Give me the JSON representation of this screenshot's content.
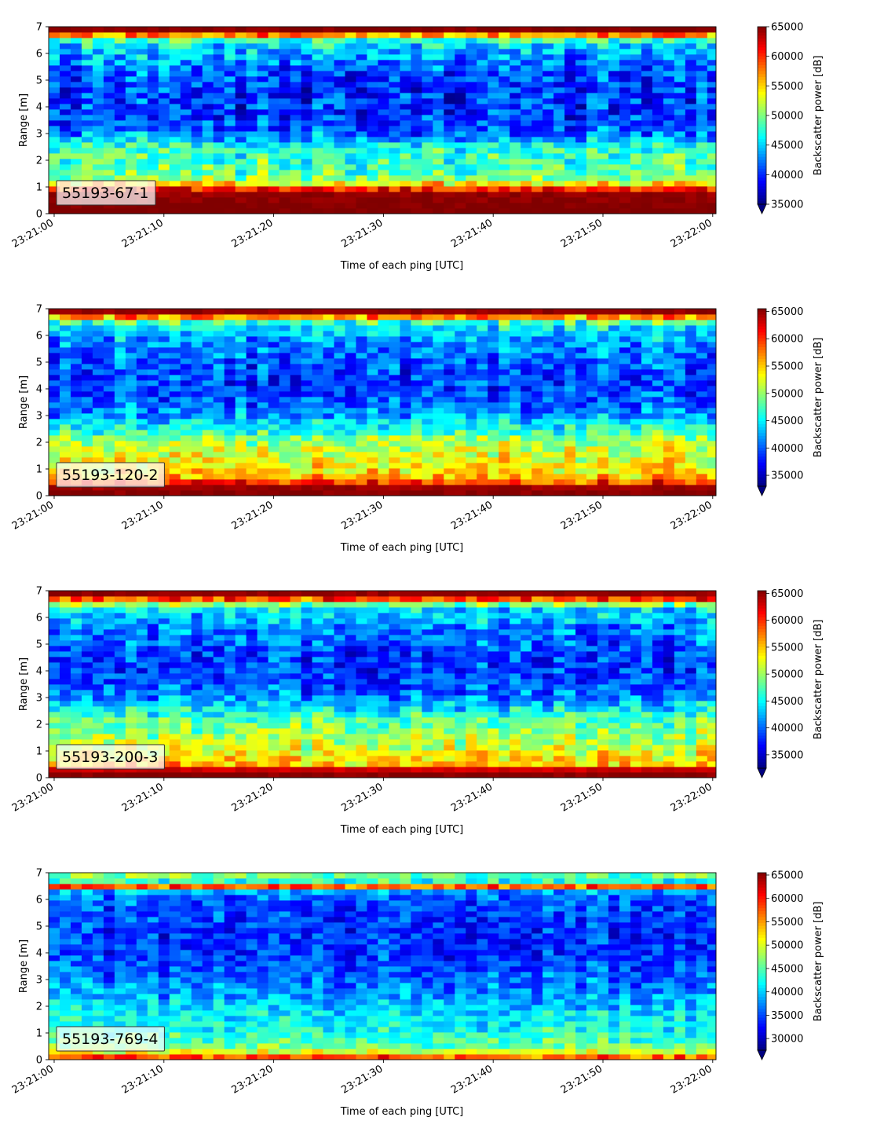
{
  "chart_data": [
    {
      "type": "heatmap",
      "label": "55193-67-1",
      "xlabel": "Time of each ping [UTC]",
      "ylabel": "Range [m]",
      "x_range": [
        "23:20:59.5",
        "23:22:00.3"
      ],
      "xticks": [
        "23:21:00",
        "23:21:10",
        "23:21:20",
        "23:21:30",
        "23:21:40",
        "23:21:50",
        "23:22:00"
      ],
      "ylim": [
        0,
        7
      ],
      "yticks": [
        0,
        1,
        2,
        3,
        4,
        5,
        6,
        7
      ],
      "colorbar": {
        "label": "Backscatter power [dB]",
        "min": 35000,
        "max": 65000,
        "ticks": [
          35000,
          40000,
          45000,
          50000,
          55000,
          60000,
          65000
        ],
        "colormap": "jet",
        "extend": "min"
      },
      "profile": {
        "range_m": [
          0.1,
          0.8,
          1.1,
          1.4,
          1.8,
          2.2,
          2.6,
          3.0,
          3.5,
          4.0,
          4.5,
          5.0,
          5.5,
          6.0,
          6.4,
          6.6,
          6.8,
          7.0
        ],
        "power": [
          65000,
          64000,
          55000,
          49000,
          48500,
          48000,
          46000,
          42000,
          40000,
          40000,
          40000,
          40500,
          41500,
          44000,
          45500,
          50000,
          64000,
          65000
        ]
      }
    },
    {
      "type": "heatmap",
      "label": "55193-120-2",
      "xlabel": "Time of each ping [UTC]",
      "ylabel": "Range [m]",
      "x_range": [
        "23:20:59.5",
        "23:22:00.3"
      ],
      "xticks": [
        "23:21:00",
        "23:21:10",
        "23:21:20",
        "23:21:30",
        "23:21:40",
        "23:21:50",
        "23:22:00"
      ],
      "ylim": [
        0,
        7
      ],
      "yticks": [
        0,
        1,
        2,
        3,
        4,
        5,
        6,
        7
      ],
      "colorbar": {
        "label": "Backscatter power [dB]",
        "min": 33000,
        "max": 65500,
        "ticks": [
          35000,
          40000,
          45000,
          50000,
          55000,
          60000,
          65000
        ],
        "colormap": "jet",
        "extend": "min"
      },
      "profile": {
        "range_m": [
          0.1,
          0.4,
          0.6,
          0.9,
          1.3,
          1.7,
          2.1,
          2.5,
          3.0,
          3.5,
          4.0,
          4.5,
          5.0,
          5.5,
          6.0,
          6.4,
          6.6,
          6.8,
          7.0
        ],
        "power": [
          65000,
          64000,
          56000,
          54000,
          53000,
          52000,
          50000,
          46000,
          42000,
          40000,
          39000,
          39000,
          40000,
          41000,
          43000,
          45000,
          50000,
          64000,
          65000
        ]
      }
    },
    {
      "type": "heatmap",
      "label": "55193-200-3",
      "xlabel": "Time of each ping [UTC]",
      "ylabel": "Range [m]",
      "x_range": [
        "23:20:59.5",
        "23:22:00.3"
      ],
      "xticks": [
        "23:21:00",
        "23:21:10",
        "23:21:20",
        "23:21:30",
        "23:21:40",
        "23:21:50",
        "23:22:00"
      ],
      "ylim": [
        0,
        7
      ],
      "yticks": [
        0,
        1,
        2,
        3,
        4,
        5,
        6,
        7
      ],
      "colorbar": {
        "label": "Backscatter power [dB]",
        "min": 32500,
        "max": 65500,
        "ticks": [
          35000,
          40000,
          45000,
          50000,
          55000,
          60000,
          65000
        ],
        "colormap": "jet",
        "extend": "min"
      },
      "profile": {
        "range_m": [
          0.1,
          0.3,
          0.5,
          0.9,
          1.3,
          1.7,
          2.1,
          2.5,
          3.0,
          3.5,
          4.0,
          4.5,
          5.0,
          5.5,
          6.0,
          6.4,
          6.6,
          6.8,
          7.0
        ],
        "power": [
          65000,
          63000,
          55000,
          53000,
          51000,
          49500,
          48000,
          45000,
          41000,
          39000,
          38500,
          38500,
          39500,
          40500,
          42500,
          45000,
          55000,
          64000,
          65000
        ]
      }
    },
    {
      "type": "heatmap",
      "label": "55193-769-4",
      "xlabel": "Time of each ping [UTC]",
      "ylabel": "Range [m]",
      "x_range": [
        "23:20:59.5",
        "23:22:00.3"
      ],
      "xticks": [
        "23:21:00",
        "23:21:10",
        "23:21:20",
        "23:21:30",
        "23:21:40",
        "23:21:50",
        "23:22:00"
      ],
      "ylim": [
        0,
        7
      ],
      "yticks": [
        0,
        1,
        2,
        3,
        4,
        5,
        6,
        7
      ],
      "colorbar": {
        "label": "Backscatter power [dB]",
        "min": 27500,
        "max": 65500,
        "ticks": [
          30000,
          35000,
          40000,
          45000,
          50000,
          55000,
          60000,
          65000
        ],
        "colormap": "jet",
        "extend": "min"
      },
      "profile": {
        "range_m": [
          0.05,
          0.2,
          0.3,
          0.5,
          0.8,
          1.2,
          1.6,
          2.0,
          2.5,
          3.0,
          3.5,
          4.0,
          4.5,
          5.0,
          5.5,
          6.0,
          6.3,
          6.45,
          6.6,
          6.75,
          6.9,
          7.0
        ],
        "power": [
          55000,
          62000,
          50000,
          46000,
          44000,
          42000,
          41000,
          40000,
          38000,
          36500,
          35000,
          34000,
          34000,
          34000,
          34500,
          35500,
          38000,
          60000,
          48000,
          40000,
          46000,
          45000
        ]
      }
    }
  ]
}
